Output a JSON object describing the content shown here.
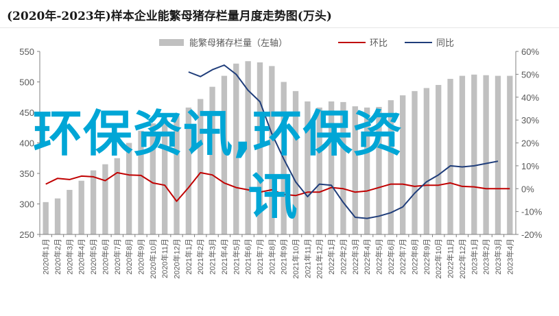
{
  "title": "(2020年-2023年)样本企业能繁母猪存栏量月度走势图(万头)",
  "watermark": "环保资讯,环保资讯",
  "chart_data": {
    "type": "bar+line",
    "title": "(2020年-2023年)样本企业能繁母猪存栏量月度走势图(万头)",
    "categories": [
      "2020年1月",
      "2020年2月",
      "2020年3月",
      "2020年4月",
      "2020年5月",
      "2020年6月",
      "2020年7月",
      "2020年8月",
      "2020年9月",
      "2020年10月",
      "2020年11月",
      "2020年12月",
      "2021年1月",
      "2021年2月",
      "2021年3月",
      "2021年4月",
      "2021年5月",
      "2021年6月",
      "2021年7月",
      "2021年8月",
      "2021年9月",
      "2021年10月",
      "2021年11月",
      "2021年12月",
      "2022年1月",
      "2022年2月",
      "2022年3月",
      "2022年4月",
      "2022年5月",
      "2022年6月",
      "2022年7月",
      "2022年8月",
      "2022年9月",
      "2022年10月",
      "2022年11月",
      "2022年12月",
      "2023年1月",
      "2023年2月",
      "2023年3月",
      "2023年4月"
    ],
    "series": [
      {
        "name": "能繁母猪存栏量（左轴）",
        "type": "bar",
        "axis": "left",
        "color": "#c0c0c0",
        "values": [
          303,
          309,
          323,
          338,
          355,
          365,
          375,
          400,
          420,
          432,
          440,
          445,
          458,
          472,
          492,
          510,
          530,
          534,
          532,
          526,
          500,
          485,
          468,
          458,
          468,
          467,
          460,
          458,
          459,
          470,
          478,
          485,
          490,
          495,
          505,
          510,
          512,
          511,
          510,
          510
        ]
      },
      {
        "name": "环比",
        "type": "line",
        "axis": "right",
        "color": "#c00000",
        "values": [
          2,
          4.5,
          4,
          5.5,
          5.2,
          3.5,
          7,
          6,
          5.8,
          2.5,
          1.5,
          -5.5,
          0.5,
          7,
          6,
          2.5,
          0.5,
          -0.5,
          -1.5,
          -0.5,
          -2.5,
          -3,
          -1.5,
          -1.5,
          0.5,
          0,
          -1.5,
          -1,
          0.5,
          2,
          2,
          1,
          1.5,
          1.5,
          2.5,
          1,
          0.8,
          0,
          0,
          0
        ]
      },
      {
        "name": "同比",
        "type": "line",
        "axis": "right",
        "color": "#1f3d7a",
        "values": [
          null,
          null,
          null,
          null,
          null,
          null,
          null,
          null,
          null,
          null,
          null,
          null,
          51,
          49,
          52,
          54,
          50,
          43,
          38,
          24,
          13,
          3,
          -3.5,
          2,
          1.5,
          -6,
          -12.5,
          -13,
          -12,
          -10.5,
          -8,
          -2,
          3,
          6,
          10,
          9.5,
          10,
          11,
          12,
          null
        ]
      }
    ],
    "left_axis": {
      "min": 250,
      "max": 550,
      "ticks": [
        "250",
        "300",
        "350",
        "400",
        "450",
        "500",
        "550"
      ]
    },
    "right_axis": {
      "min": -20,
      "max": 60,
      "ticks": [
        "-20%",
        "-10%",
        "0%",
        "10%",
        "20%",
        "30%",
        "40%",
        "50%",
        "60%"
      ]
    },
    "legend_position": "top"
  }
}
